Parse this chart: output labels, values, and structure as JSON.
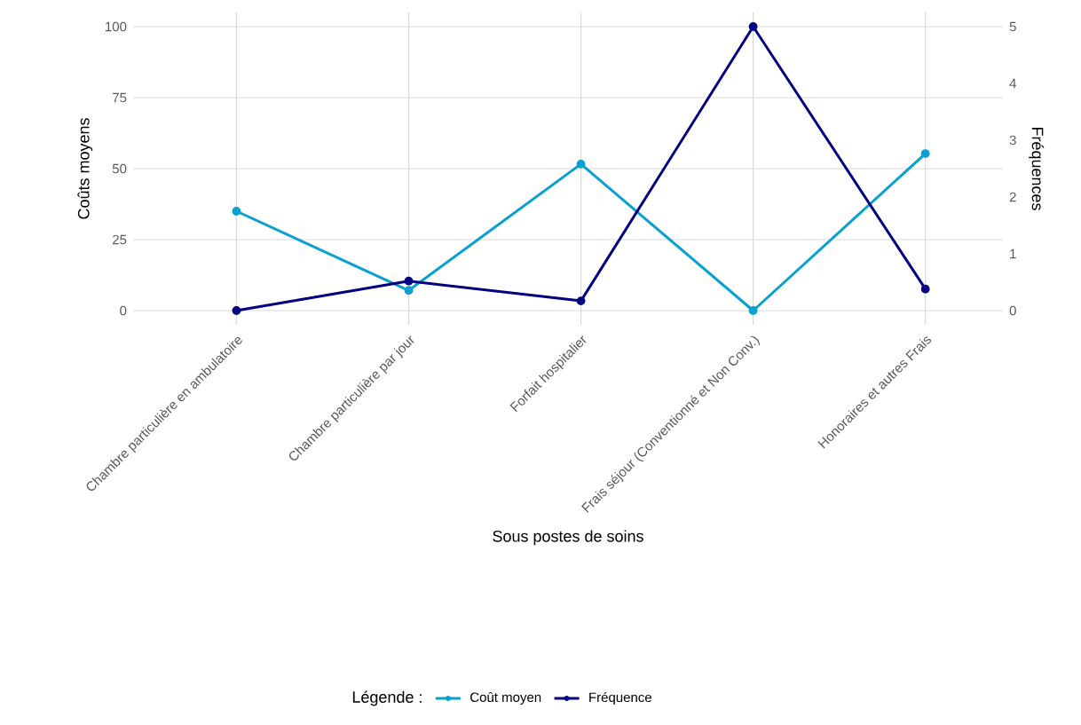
{
  "chart_data": {
    "type": "line",
    "xlabel": "Sous postes de soins",
    "ylabel": "Coûts moyens",
    "y2label": "Fréquences",
    "legend_title": "Légende :",
    "legend": "bottom",
    "grid": true,
    "marker": "circle",
    "line_style": "solid",
    "categories": [
      "Chambre particulière en ambulatoire",
      "Chambre particulière par jour",
      "Forfait hospitalier",
      "Frais séjour (Conventionné et Non Conv.)",
      "Honoraires et autres Frais"
    ],
    "ylim": [
      -5,
      105
    ],
    "yticks": [
      0,
      25,
      50,
      75,
      100
    ],
    "y2lim": [
      -0.25,
      5.25
    ],
    "y2ticks": [
      0,
      1,
      2,
      3,
      4,
      5
    ],
    "series": [
      {
        "name": "Coût moyen",
        "color": "#0aa0cf",
        "values": [
          35,
          7.1,
          51.6,
          0,
          55.3
        ]
      },
      {
        "name": "Fréquence",
        "color": "#020080",
        "axis": "y2",
        "values": [
          0,
          0.52,
          0.17,
          5,
          0.38
        ]
      }
    ]
  }
}
